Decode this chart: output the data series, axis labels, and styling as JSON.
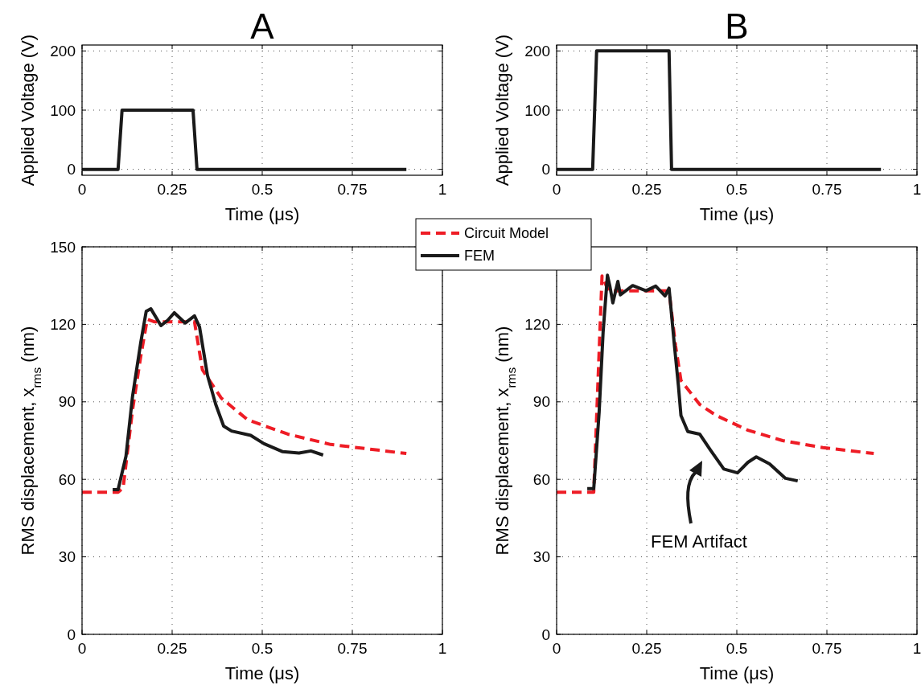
{
  "chart_data": [
    {
      "type": "line",
      "title": "A",
      "xlabel": "Time (μs)",
      "ylabel": "Applied Voltage (V)",
      "xlim": [
        0,
        1
      ],
      "xticks": [
        0,
        0.25,
        0.5,
        0.75,
        1
      ],
      "ylim": [
        -10,
        210
      ],
      "yticks": [
        0,
        100,
        200
      ],
      "grid": true,
      "legend": false,
      "series": [
        {
          "color": "#1a1a1a",
          "x": [
            0,
            0.1,
            0.111,
            0.308,
            0.319,
            0.9
          ],
          "values": [
            0,
            0,
            100,
            100,
            0,
            0
          ]
        }
      ]
    },
    {
      "type": "line",
      "title": "B",
      "xlabel": "Time (μs)",
      "ylabel": "Applied Voltage (V)",
      "xlim": [
        0,
        1
      ],
      "xticks": [
        0,
        0.25,
        0.5,
        0.75,
        1
      ],
      "ylim": [
        -10,
        210
      ],
      "yticks": [
        0,
        100,
        200
      ],
      "grid": true,
      "legend": false,
      "series": [
        {
          "color": "#1a1a1a",
          "x": [
            0,
            0.1,
            0.111,
            0.312,
            0.319,
            0.9
          ],
          "values": [
            0,
            0,
            200,
            200,
            0,
            0
          ]
        }
      ]
    },
    {
      "type": "line",
      "xlabel": "Time (μs)",
      "ylabel": "RMS displacement, x$_{rms}$ (nm)",
      "xlim": [
        0,
        1
      ],
      "xticks": [
        0,
        0.25,
        0.5,
        0.75,
        1
      ],
      "ylim": [
        0,
        150
      ],
      "yticks": [
        0,
        30,
        60,
        90,
        120,
        150
      ],
      "grid": true,
      "legend": false,
      "series": [
        {
          "color": "#ee1c25",
          "line_style": "dashed",
          "x": [
            0,
            0.1,
            0.114,
            0.14,
            0.163,
            0.181,
            0.2,
            0.25,
            0.312,
            0.334,
            0.386,
            0.46,
            0.571,
            0.69,
            0.9
          ],
          "values": [
            55,
            55,
            56.7,
            86.8,
            107.7,
            122,
            121,
            121,
            121,
            102.4,
            91.5,
            83,
            77.5,
            73.5,
            70
          ]
        },
        {
          "color": "#1a1a1a",
          "x": [
            0.085,
            0.1,
            0.122,
            0.14,
            0.163,
            0.178,
            0.191,
            0.219,
            0.238,
            0.256,
            0.286,
            0.312,
            0.326,
            0.348,
            0.371,
            0.393,
            0.415,
            0.468,
            0.505,
            0.557,
            0.602,
            0.635,
            0.669
          ],
          "values": [
            56,
            56,
            69,
            92,
            113,
            125,
            126,
            119.5,
            121.6,
            124.5,
            120.5,
            123.3,
            119,
            100.3,
            89,
            80.6,
            78.7,
            77,
            73.8,
            70.7,
            70.2,
            71,
            69.4
          ]
        }
      ]
    },
    {
      "type": "line",
      "xlabel": "Time (μs)",
      "ylabel": "RMS displacement, x$_{rms}$ (nm)",
      "xlim": [
        0,
        1
      ],
      "xticks": [
        0,
        0.25,
        0.5,
        0.75,
        1
      ],
      "ylim": [
        0,
        150
      ],
      "yticks": [
        0,
        30,
        60,
        90,
        120
      ],
      "grid": true,
      "legend": "top left",
      "annotations": [
        "FEM Artifact"
      ],
      "series": [
        {
          "name": "Circuit Model",
          "color": "#ee1c25",
          "line_style": "dashed",
          "x": [
            0,
            0.103,
            0.126,
            0.144,
            0.2,
            0.25,
            0.312,
            0.33,
            0.345,
            0.397,
            0.442,
            0.531,
            0.627,
            0.739,
            0.88
          ],
          "values": [
            55,
            55,
            138.7,
            133,
            133,
            133,
            133,
            111.7,
            98.3,
            89,
            84.8,
            79,
            75,
            72.3,
            70
          ]
        },
        {
          "name": "FEM",
          "color": "#1a1a1a",
          "x": [
            0.085,
            0.103,
            0.118,
            0.129,
            0.141,
            0.148,
            0.156,
            0.17,
            0.177,
            0.211,
            0.248,
            0.275,
            0.301,
            0.312,
            0.327,
            0.338,
            0.345,
            0.364,
            0.397,
            0.427,
            0.464,
            0.502,
            0.531,
            0.554,
            0.591,
            0.635,
            0.669
          ],
          "values": [
            56.4,
            56.4,
            86,
            117,
            139,
            134.6,
            128.3,
            136.6,
            131.4,
            135,
            133,
            134.8,
            131,
            134,
            111.7,
            96.2,
            84.7,
            78.5,
            77.5,
            71.3,
            64,
            62.5,
            66.6,
            68.7,
            66,
            60.4,
            59.4
          ]
        }
      ]
    }
  ]
}
